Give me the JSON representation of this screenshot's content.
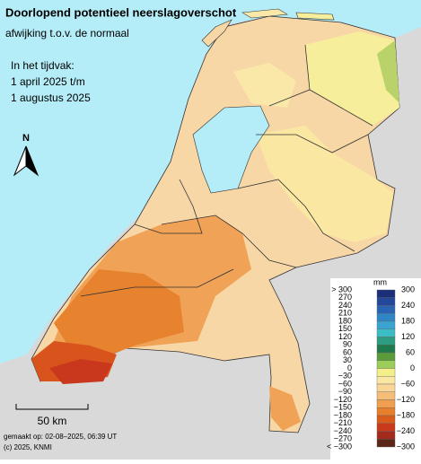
{
  "header": {
    "title": "Doorlopend potentieel neerslagoverschot",
    "subtitle": "afwijking t.o.v. de normaal"
  },
  "period": {
    "label": "In het tijdvak:",
    "from": "1 april 2025 t/m",
    "to": "1 augustus 2025"
  },
  "north": "N",
  "scale_bar": "50 km",
  "footer": {
    "made": "gemaakt op: 02-08–2025, 06:39 UT",
    "copyright": "(c) 2025, KNMI"
  },
  "legend": {
    "unit": "mm",
    "left_labels": [
      "> 300",
      "270",
      "240",
      "210",
      "180",
      "150",
      "120",
      "90",
      "60",
      "30",
      "0",
      "−30",
      "−60",
      "−90",
      "−120",
      "−150",
      "−180",
      "−210",
      "−240",
      "−270",
      "< −300"
    ],
    "right_labels": [
      "300",
      "240",
      "180",
      "120",
      "60",
      "0",
      "−60",
      "−120",
      "−180",
      "−240",
      "−300"
    ],
    "colors": [
      "#1b2f78",
      "#24479a",
      "#2a63b3",
      "#2f86c6",
      "#3aa3cf",
      "#3cbcc4",
      "#2e9c80",
      "#1e7a4a",
      "#5a9c3a",
      "#9ccc5a",
      "#f3f08a",
      "#fbe7a4",
      "#f9d596",
      "#f5bd78",
      "#ef9f4f",
      "#e77f2c",
      "#d95c1a",
      "#c9391b",
      "#a32a1d",
      "#5a2618"
    ]
  }
}
